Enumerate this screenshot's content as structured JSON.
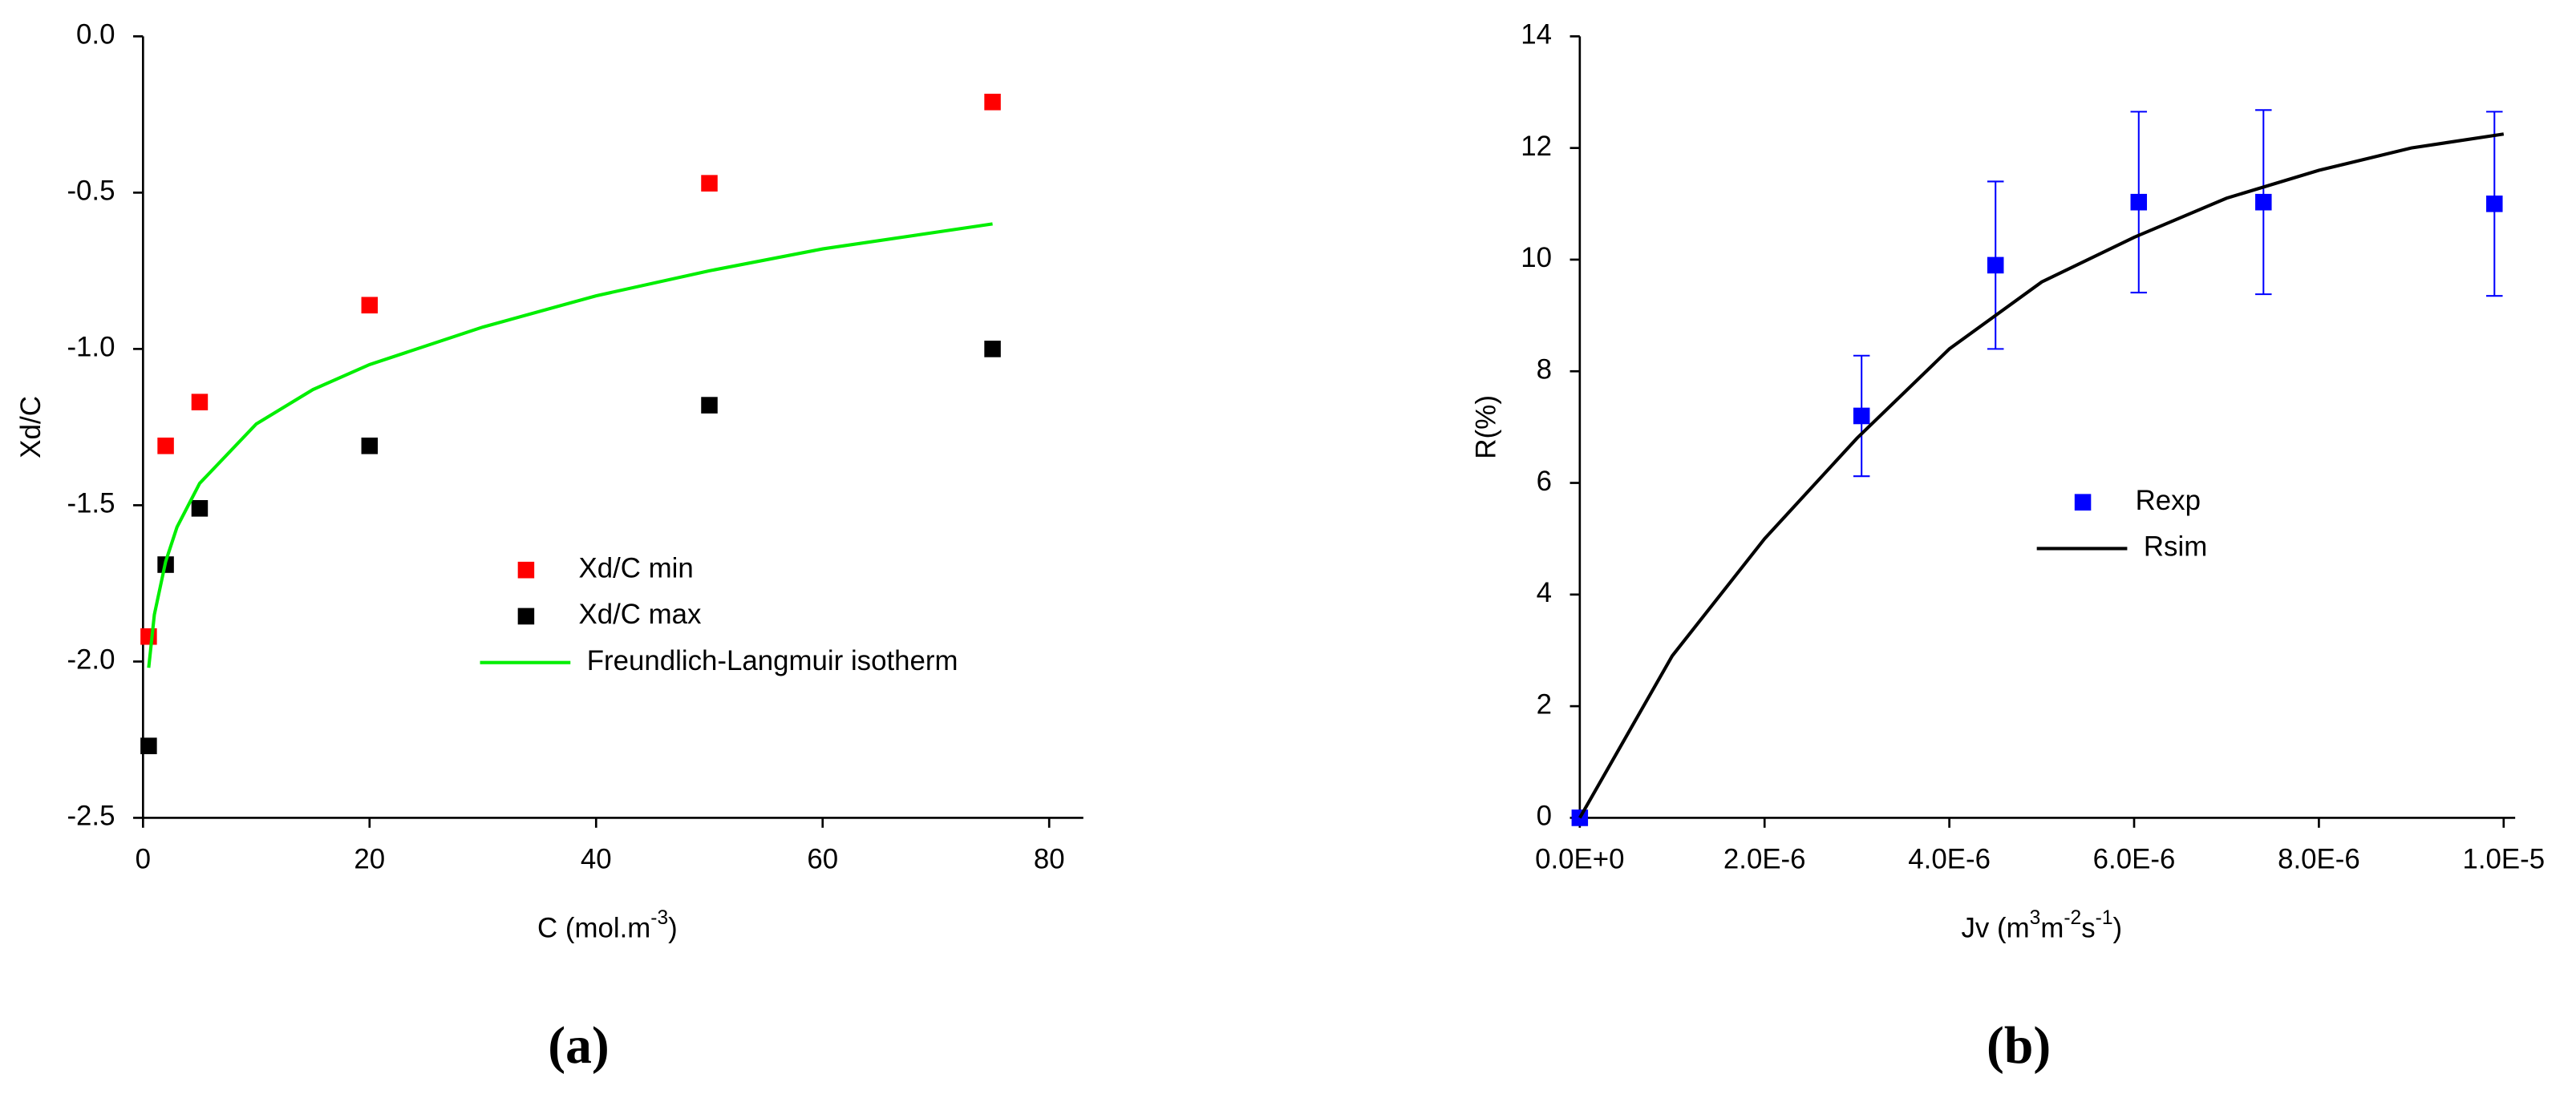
{
  "chart_data": [
    {
      "type": "scatter",
      "panel_label": "(a)",
      "ylabel": "Xd/C",
      "xlabel_parts": [
        "C (mol.m",
        "-3",
        ")"
      ],
      "xlim": [
        0,
        82
      ],
      "xticks": [
        0,
        20,
        40,
        60,
        80
      ],
      "ylim": [
        -2.5,
        0
      ],
      "yticks": [
        -2.5,
        {
          "value": -2,
          "label": "-2.0"
        },
        -1.5,
        {
          "value": -1,
          "label": "-1.0"
        },
        -0.5,
        {
          "value": 0,
          "label": "0.0"
        }
      ],
      "legend": "center",
      "series": [
        {
          "name": "Xd/C min",
          "type": "scatter",
          "color": "#ff0000",
          "x": [
            0.5,
            2,
            5,
            20,
            50,
            75
          ],
          "values": [
            -1.92,
            -1.31,
            -1.17,
            -0.86,
            -0.47,
            -0.21
          ]
        },
        {
          "name": "Xd/C max",
          "type": "scatter",
          "color": "#000000",
          "x": [
            0.5,
            2,
            5,
            20,
            50,
            75
          ],
          "values": [
            -2.27,
            -1.69,
            -1.51,
            -1.31,
            -1.18,
            -1.0
          ]
        },
        {
          "name": "Freundlich-Langmuir isotherm",
          "type": "line",
          "color": "#00ee00",
          "x": [
            0.5,
            1,
            2,
            3,
            5,
            10,
            15,
            20,
            30,
            40,
            50,
            60,
            75
          ],
          "values": [
            -2.02,
            -1.85,
            -1.68,
            -1.57,
            -1.43,
            -1.24,
            -1.13,
            -1.05,
            -0.93,
            -0.83,
            -0.75,
            -0.68,
            -0.6
          ]
        }
      ]
    },
    {
      "type": "scatter",
      "panel_label": "(b)",
      "ylabel": "R(%)",
      "xlabel_parts": [
        "Jv (m",
        "3",
        "m",
        "-2",
        "s",
        "-1",
        ")"
      ],
      "xlim": [
        0,
        1e-05
      ],
      "xticks": [
        {
          "value": 0,
          "label": "0.0E+0"
        },
        {
          "value": 2e-06,
          "label": "2.0E-6"
        },
        {
          "value": 4e-06,
          "label": "4.0E-6"
        },
        {
          "value": 6e-06,
          "label": "6.0E-6"
        },
        {
          "value": 8e-06,
          "label": "8.0E-6"
        },
        {
          "value": 1e-05,
          "label": "1.0E-5"
        }
      ],
      "ylim": [
        0,
        14
      ],
      "yticks": [
        0,
        2,
        4,
        6,
        8,
        10,
        12,
        14
      ],
      "legend": "center right",
      "series": [
        {
          "name": "Rexp",
          "type": "scatter",
          "color": "#0000ff",
          "x": [
            0,
            3.05e-06,
            4.5e-06,
            6.05e-06,
            7.4e-06,
            9.9e-06
          ],
          "values": [
            0,
            7.2,
            9.9,
            11.03,
            11.03,
            11.0
          ],
          "errors": [
            0,
            1.08,
            1.5,
            1.62,
            1.65,
            1.65
          ]
        },
        {
          "name": "Rsim",
          "type": "line",
          "color": "#000000",
          "x": [
            0,
            1e-06,
            2e-06,
            3e-06,
            4e-06,
            5e-06,
            6e-06,
            7e-06,
            8e-06,
            9e-06,
            1e-05
          ],
          "values": [
            0,
            2.9,
            5.0,
            6.8,
            8.4,
            9.6,
            10.4,
            11.1,
            11.6,
            12.0,
            12.25
          ]
        }
      ]
    }
  ]
}
